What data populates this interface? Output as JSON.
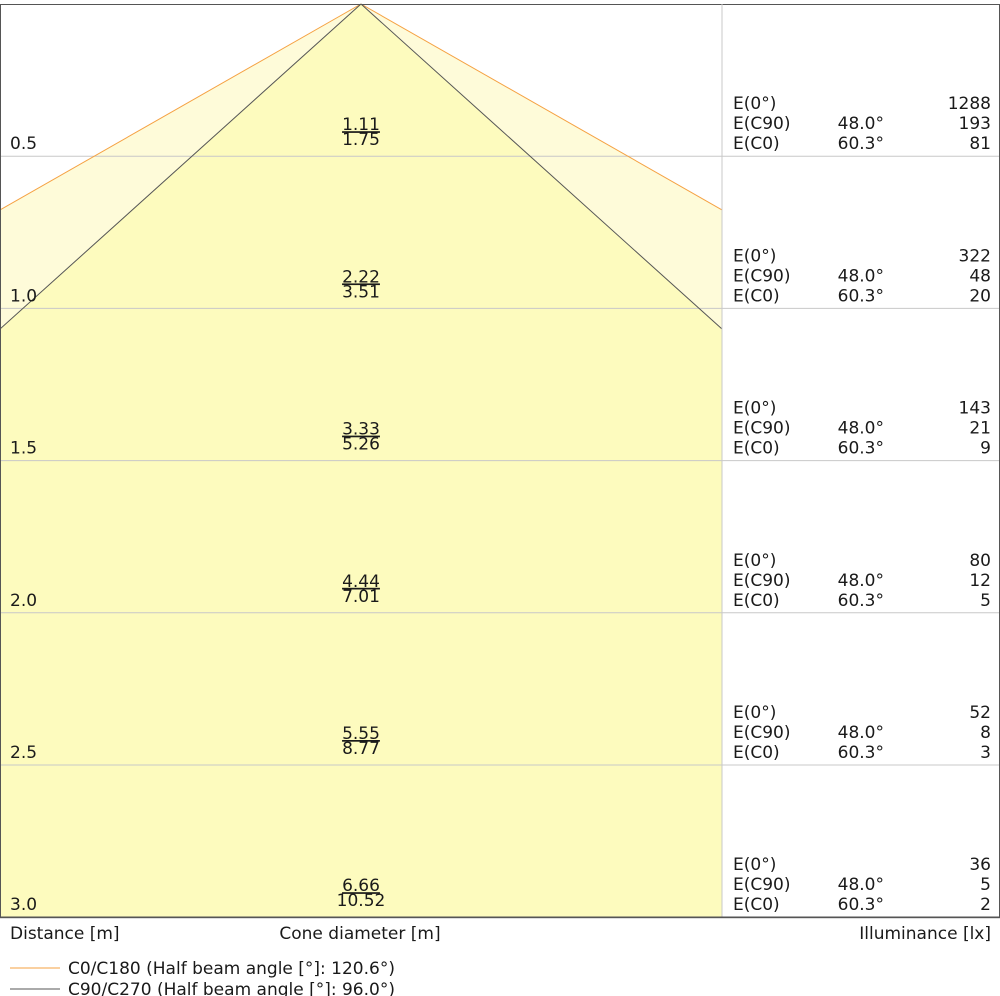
{
  "chart_data": {
    "type": "cone_diagram",
    "title": "",
    "xlabel": "Cone diameter [m]",
    "ylabel": "Distance [m]",
    "right_label": "Illuminance [lx]",
    "legend_placement": "bottom-left",
    "colors": {
      "cone_narrow_fill": "#fdfbbe",
      "cone_wide_fill": "#fefbd9",
      "c0_line": "#f5a142",
      "c90_line": "#555555",
      "grid": "#c8c8c8",
      "frame": "#555555",
      "text": "#1a1a1a"
    },
    "series": [
      {
        "name": "C0/C180 (Half beam angle [°]: 120.6°)",
        "half_beam_angle": 120.6
      },
      {
        "name": "C90/C270 (Half beam angle [°]: 96.0°)",
        "half_beam_angle": 96.0
      }
    ],
    "rows": [
      {
        "distance": "0.5",
        "diam_c90": "1.11",
        "diam_c0": "1.75",
        "e0_label": "E(0°)",
        "e0": "1288",
        "ec90_label": "E(C90)",
        "ec90_angle": "48.0°",
        "ec90": "193",
        "ec0_label": "E(C0)",
        "ec0_angle": "60.3°",
        "ec0": "81"
      },
      {
        "distance": "1.0",
        "diam_c90": "2.22",
        "diam_c0": "3.51",
        "e0_label": "E(0°)",
        "e0": "322",
        "ec90_label": "E(C90)",
        "ec90_angle": "48.0°",
        "ec90": "48",
        "ec0_label": "E(C0)",
        "ec0_angle": "60.3°",
        "ec0": "20"
      },
      {
        "distance": "1.5",
        "diam_c90": "3.33",
        "diam_c0": "5.26",
        "e0_label": "E(0°)",
        "e0": "143",
        "ec90_label": "E(C90)",
        "ec90_angle": "48.0°",
        "ec90": "21",
        "ec0_label": "E(C0)",
        "ec0_angle": "60.3°",
        "ec0": "9"
      },
      {
        "distance": "2.0",
        "diam_c90": "4.44",
        "diam_c0": "7.01",
        "e0_label": "E(0°)",
        "e0": "80",
        "ec90_label": "E(C90)",
        "ec90_angle": "48.0°",
        "ec90": "12",
        "ec0_label": "E(C0)",
        "ec0_angle": "60.3°",
        "ec0": "5"
      },
      {
        "distance": "2.5",
        "diam_c90": "5.55",
        "diam_c0": "8.77",
        "e0_label": "E(0°)",
        "e0": "52",
        "ec90_label": "E(C90)",
        "ec90_angle": "48.0°",
        "ec90": "8",
        "ec0_label": "E(C0)",
        "ec0_angle": "60.3°",
        "ec0": "3"
      },
      {
        "distance": "3.0",
        "diam_c90": "6.66",
        "diam_c0": "10.52",
        "e0_label": "E(0°)",
        "e0": "36",
        "ec90_label": "E(C90)",
        "ec90_angle": "48.0°",
        "ec90": "5",
        "ec0_label": "E(C0)",
        "ec0_angle": "60.3°",
        "ec0": "2"
      }
    ]
  }
}
